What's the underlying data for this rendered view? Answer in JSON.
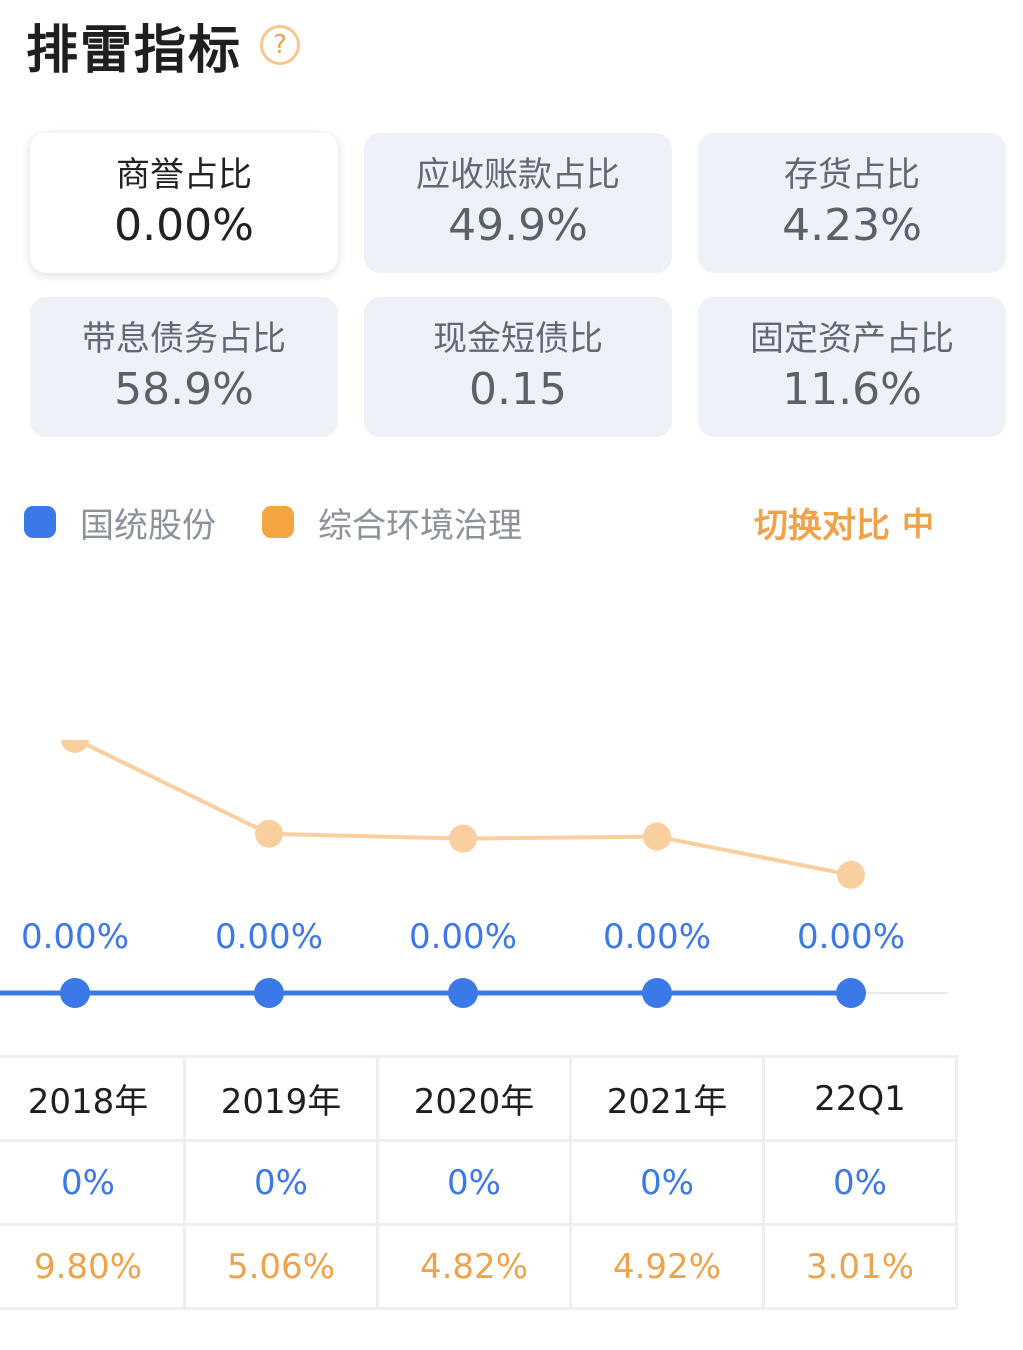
{
  "header": {
    "title": "排雷指标",
    "help_icon": "?"
  },
  "cards": [
    {
      "label": "商誉占比",
      "value": "0.00%",
      "active": true
    },
    {
      "label": "应收账款占比",
      "value": "49.9%"
    },
    {
      "label": "存货占比",
      "value": "4.23%"
    },
    {
      "label": "带息债务占比",
      "value": "58.9%"
    },
    {
      "label": "现金短债比",
      "value": "0.15"
    },
    {
      "label": "固定资产占比",
      "value": "11.6%"
    }
  ],
  "legend": {
    "series1": {
      "label": "国统股份",
      "color": "#3b79e8"
    },
    "series2": {
      "label": "综合环境治理",
      "color": "#f5a442"
    },
    "switch_label": "切换对比",
    "switch_icon": "中"
  },
  "chart_data": {
    "type": "line",
    "categories": [
      "2018年",
      "2019年",
      "2020年",
      "2021年",
      "22Q1"
    ],
    "series": [
      {
        "name": "国统股份",
        "values": [
          0,
          0,
          0,
          0,
          0
        ],
        "labels": [
          "0.00%",
          "0.00%",
          "0.00%",
          "0.00%",
          "0.00%"
        ],
        "color": "#3b79e8"
      },
      {
        "name": "综合环境治理",
        "values": [
          9.8,
          5.06,
          4.82,
          4.92,
          3.01
        ],
        "color": "#f9cfa0"
      }
    ]
  },
  "table": {
    "periods": [
      "2018年",
      "2019年",
      "2020年",
      "2021年",
      "22Q1"
    ],
    "company": [
      "0%",
      "0%",
      "0%",
      "0%",
      "0%"
    ],
    "industry": [
      "9.80%",
      "5.06%",
      "4.82%",
      "4.92%",
      "3.01%"
    ]
  }
}
